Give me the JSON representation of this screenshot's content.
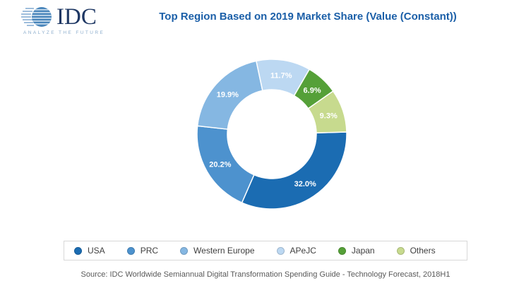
{
  "logo": {
    "text": "IDC",
    "tagline": "ANALYZE THE FUTURE"
  },
  "title": "Top Region Based on 2019 Market Share (Value (Constant))",
  "chart_data": {
    "type": "pie",
    "subtype": "donut",
    "title": "Top Region Based on 2019 Market Share (Value (Constant))",
    "direction": "clockwise",
    "start_angle_deg": 88.4,
    "inner_radius_ratio": 0.59,
    "categories": [
      "USA",
      "PRC",
      "Western Europe",
      "APeJC",
      "Japan",
      "Others"
    ],
    "values": [
      32.0,
      20.2,
      19.9,
      11.7,
      6.9,
      9.3
    ],
    "slice_labels": [
      "32.0%",
      "20.2%",
      "19.9%",
      "11.7%",
      "6.9%",
      "9.3%"
    ],
    "colors": [
      "#1B6CB2",
      "#4D92CE",
      "#85B7E2",
      "#BCD8F2",
      "#55A038",
      "#C7DA8E"
    ],
    "legend_position": "bottom"
  },
  "footer": {
    "source": "Source: IDC Worldwide Semiannual Digital Transformation Spending Guide - Technology Forecast, 2018H1"
  }
}
